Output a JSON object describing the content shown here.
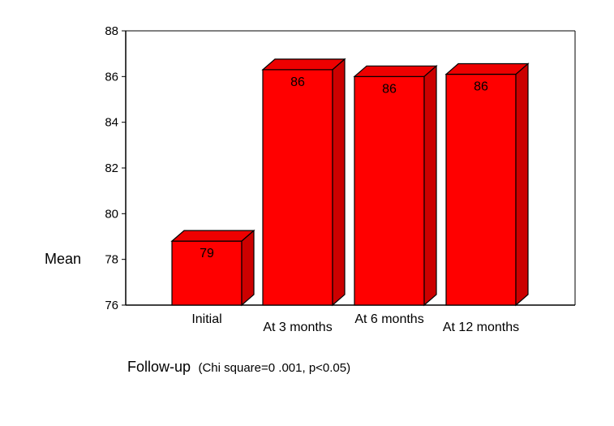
{
  "chart_data": {
    "type": "bar",
    "style": "3d",
    "categories": [
      "Initial",
      "At 3 months",
      "At 6 months",
      "At 12 months"
    ],
    "values": [
      78.8,
      86.3,
      86.0,
      86.1
    ],
    "data_labels": [
      "79",
      "86",
      "86",
      "86"
    ],
    "ylabel": "Mean",
    "xlabel": "Follow-up",
    "xlabel_note": "(Chi square=0 .001, p<0.05)",
    "ylim": [
      76,
      88
    ],
    "yticks": [
      "76",
      "78",
      "80",
      "82",
      "84",
      "86",
      "88"
    ],
    "grid": false,
    "legend": "none",
    "bar_color": "#ff0000",
    "bar_top_color": "#ee0000",
    "bar_side_color": "#cc0000",
    "outline_color": "#000000"
  }
}
